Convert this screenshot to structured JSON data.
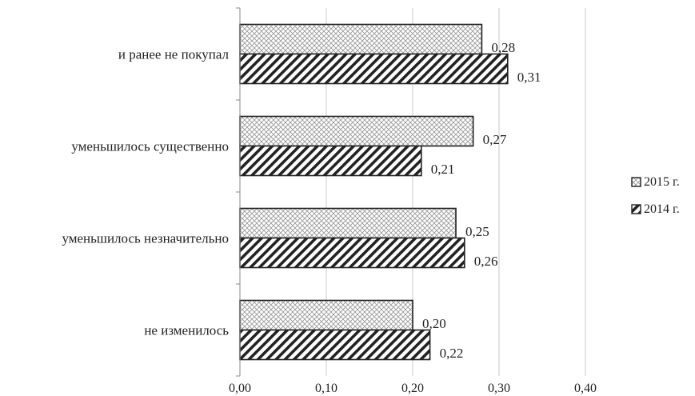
{
  "chart_data": {
    "type": "bar",
    "orientation": "horizontal",
    "categories": [
      "и ранее не покупал",
      "уменьшилось существенно",
      "уменьшилось незначительно",
      "не изменилось"
    ],
    "series": [
      {
        "name": "2015 г.",
        "values": [
          0.28,
          0.27,
          0.25,
          0.2
        ],
        "labels": [
          "0,28",
          "0,27",
          "0,25",
          "0,20"
        ],
        "pattern": "crosshatch"
      },
      {
        "name": "2014 г.",
        "values": [
          0.31,
          0.21,
          0.26,
          0.22
        ],
        "labels": [
          "0,31",
          "0,21",
          "0,26",
          "0,22"
        ],
        "pattern": "diagonal-stripes"
      }
    ],
    "xlim": [
      0,
      0.4
    ],
    "xticks": [
      0,
      0.1,
      0.2,
      0.3,
      0.4
    ],
    "xtick_labels": [
      "0,00",
      "0,10",
      "0,20",
      "0,30",
      "0,40"
    ],
    "grid": true,
    "legend_position": "right",
    "title": "",
    "xlabel": "",
    "ylabel": ""
  },
  "colors": {
    "bar_border": "#222222",
    "stripe": "#222222",
    "crosshatch": "#9a9a9a",
    "gridline": "#c8c8c8",
    "axis": "#888888"
  }
}
